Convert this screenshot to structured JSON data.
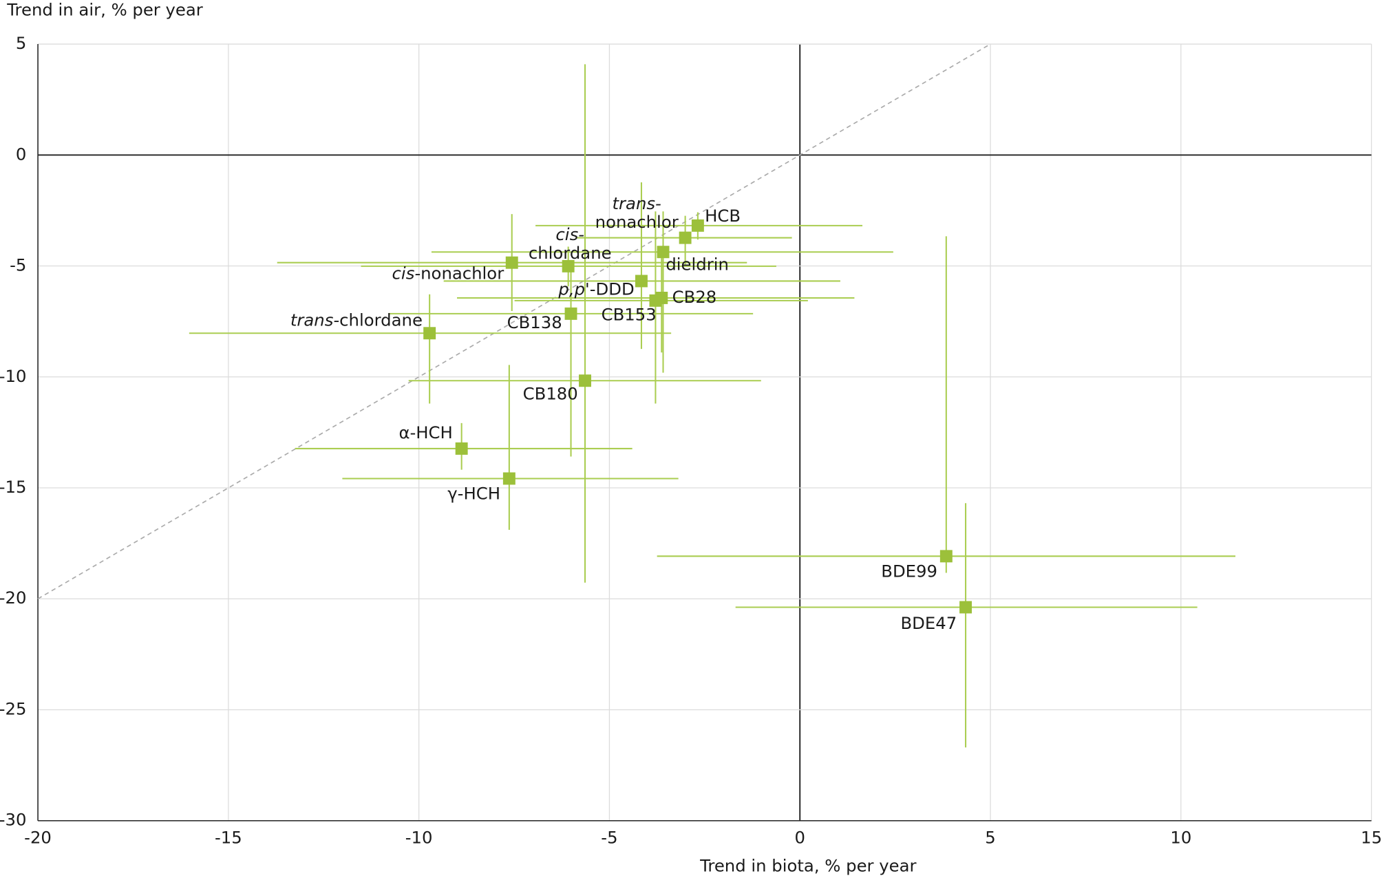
{
  "chart_data": {
    "type": "errorbar-scatter",
    "x_label": "Trend in biota, % per year",
    "y_label": "Trend in air, % per year",
    "xlim": [
      -20,
      15
    ],
    "ylim": [
      -30,
      5
    ],
    "xticks": [
      -20,
      -15,
      -10,
      -5,
      0,
      5,
      10,
      15
    ],
    "yticks": [
      -30,
      -25,
      -20,
      -15,
      -10,
      -5,
      0,
      5
    ],
    "grid": true,
    "identity_line": true,
    "color": "#9cc03a",
    "errorbar_color": "#aacd50",
    "points": [
      {
        "label": [
          [
            {
              "text": "HCB"
            }
          ]
        ],
        "x": -2.68,
        "y": -3.18,
        "xmin": -6.94,
        "xmax": 1.64,
        "ymin": -3.81,
        "ymax": -2.58
      },
      {
        "label": [
          [
            {
              "text": "trans-",
              "italic": true
            }
          ],
          [
            {
              "text": "nonachlor"
            }
          ]
        ],
        "x": -3.01,
        "y": -3.73,
        "xmin": -5.85,
        "xmax": -0.21,
        "ymin": -4.93,
        "ymax": -2.74
      },
      {
        "label": [
          [
            {
              "text": "cis-",
              "italic": true
            }
          ],
          [
            {
              "text": "chlordane"
            }
          ]
        ],
        "x": -6.08,
        "y": -5.01,
        "xmin": -11.52,
        "xmax": -0.62,
        "ymin": -5.92,
        "ymax": -4.13
      },
      {
        "label": [
          [
            {
              "text": "dieldrin"
            }
          ]
        ],
        "x": -3.59,
        "y": -4.37,
        "xmin": -9.67,
        "xmax": 2.45,
        "ymin": -9.81,
        "ymax": -2.54
      },
      {
        "label": [
          [
            {
              "text": "cis-",
              "italic": true
            },
            {
              "text": "nonachlor"
            }
          ]
        ],
        "x": -7.56,
        "y": -4.85,
        "xmin": -13.72,
        "xmax": -1.39,
        "ymin": -7.03,
        "ymax": -2.66
      },
      {
        "label": [
          [
            {
              "text": "p,p'",
              "italic": true
            },
            {
              "text": "-DDD"
            }
          ]
        ],
        "x": -4.16,
        "y": -5.68,
        "xmin": -9.35,
        "xmax": 1.06,
        "ymin": -8.74,
        "ymax": -1.23
      },
      {
        "label": [
          [
            {
              "text": "CB28"
            }
          ]
        ],
        "x": -3.63,
        "y": -6.44,
        "xmin": -9.0,
        "xmax": 1.43,
        "ymin": -8.9,
        "ymax": -4.13
      },
      {
        "label": [
          [
            {
              "text": "CB153"
            }
          ]
        ],
        "x": -3.79,
        "y": -6.56,
        "xmin": -7.49,
        "xmax": 0.21,
        "ymin": -11.2,
        "ymax": -2.54
      },
      {
        "label": [
          [
            {
              "text": "CB138"
            }
          ]
        ],
        "x": -6.01,
        "y": -7.15,
        "xmin": -10.8,
        "xmax": -1.23,
        "ymin": -13.59,
        "ymax": -4.93
      },
      {
        "label": [
          [
            {
              "text": "trans-",
              "italic": true
            },
            {
              "text": "chlordane"
            }
          ]
        ],
        "x": -9.72,
        "y": -8.03,
        "xmin": -16.03,
        "xmax": -3.38,
        "ymin": -11.2,
        "ymax": -6.28
      },
      {
        "label": [
          [
            {
              "text": "CB180"
            }
          ]
        ],
        "x": -5.64,
        "y": -10.17,
        "xmin": -10.27,
        "xmax": -1.02,
        "ymin": -19.27,
        "ymax": 4.09
      },
      {
        "label": [
          [
            {
              "text": "α-HCH"
            }
          ]
        ],
        "x": -8.88,
        "y": -13.23,
        "xmin": -13.25,
        "xmax": -4.4,
        "ymin": -14.18,
        "ymax": -12.08
      },
      {
        "label": [
          [
            {
              "text": "γ-HCH"
            }
          ]
        ],
        "x": -7.63,
        "y": -14.58,
        "xmin": -12.01,
        "xmax": -3.19,
        "ymin": -16.89,
        "ymax": -9.46
      },
      {
        "label": [
          [
            {
              "text": "BDE99"
            }
          ]
        ],
        "x": 3.84,
        "y": -18.08,
        "xmin": -3.75,
        "xmax": 11.43,
        "ymin": -18.83,
        "ymax": -3.66
      },
      {
        "label": [
          [
            {
              "text": "BDE47"
            }
          ]
        ],
        "x": 4.35,
        "y": -20.38,
        "xmin": -1.69,
        "xmax": 10.43,
        "ymin": -26.7,
        "ymax": -15.69
      }
    ]
  }
}
